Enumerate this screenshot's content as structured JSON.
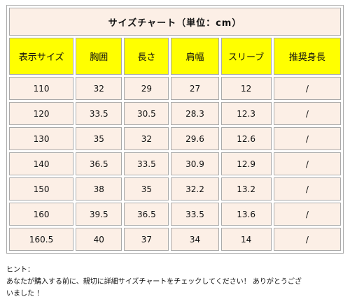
{
  "table": {
    "title": "サイズチャート（単位：cm）",
    "headers": [
      "表示サイズ",
      "胸囲",
      "長さ",
      "肩幅",
      "スリーブ",
      "推奨身長"
    ],
    "rows": [
      [
        "110",
        "32",
        "29",
        "27",
        "12",
        "/"
      ],
      [
        "120",
        "33.5",
        "30.5",
        "28.3",
        "12.3",
        "/"
      ],
      [
        "130",
        "35",
        "32",
        "29.6",
        "12.6",
        "/"
      ],
      [
        "140",
        "36.5",
        "33.5",
        "30.9",
        "12.9",
        "/"
      ],
      [
        "150",
        "38",
        "35",
        "32.2",
        "13.2",
        "/"
      ],
      [
        "160",
        "39.5",
        "36.5",
        "33.5",
        "13.6",
        "/"
      ],
      [
        "160.5",
        "40",
        "37",
        "34",
        "14",
        "/"
      ]
    ]
  },
  "hint": {
    "label": "ヒント：",
    "lines": [
      "あなたが購入する前に、親切に詳細サイズチャートをチェックしてください！ ありがとうござ",
      "いました ！"
    ]
  }
}
